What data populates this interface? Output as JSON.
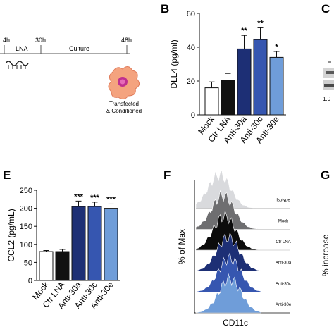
{
  "panels": {
    "B": "B",
    "C": "C",
    "E": "E",
    "F": "F",
    "G": "G"
  },
  "timeline": {
    "t0": "4h",
    "t1": "30h",
    "t2": "48h",
    "stage1": "LNA",
    "stage2": "Culture",
    "cell_caption_line1": "Transfected",
    "cell_caption_line2": "& Conditioned"
  },
  "panel_c_fragment": "1.0",
  "panel_g_fragment": "% increase",
  "chart_data": [
    {
      "panel": "B",
      "type": "bar",
      "categories": [
        "Mock",
        "Ctr LNA",
        "Anti-30a",
        "Anti-30c",
        "Anti-30e"
      ],
      "values": [
        16,
        20.5,
        39,
        44.5,
        34
      ],
      "errors": [
        3.5,
        4,
        8,
        7,
        3.5
      ],
      "significance": [
        "",
        "",
        "**",
        "**",
        "*"
      ],
      "fills": [
        "#ffffff",
        "#111111",
        "#1d2f75",
        "#3656b0",
        "#6f9dd9"
      ],
      "ylabel": "DLL4 (pg/ml)",
      "ylim": [
        0,
        60
      ],
      "yticks": [
        0,
        20,
        40,
        60
      ]
    },
    {
      "panel": "E",
      "type": "bar",
      "categories": [
        "Mock",
        "Ctr LNA",
        "Anti-30a",
        "Anti-30c",
        "Anti-30e"
      ],
      "values": [
        80,
        80,
        205,
        205,
        200
      ],
      "errors": [
        3,
        6,
        15,
        12,
        12
      ],
      "significance": [
        "",
        "",
        "***",
        "***",
        "***"
      ],
      "fills": [
        "#ffffff",
        "#111111",
        "#1d2f75",
        "#3656b0",
        "#6f9dd9"
      ],
      "ylabel": "CCL2 (pg/mL)",
      "ylim": [
        0,
        250
      ],
      "yticks": [
        0,
        50,
        100,
        150,
        200,
        250
      ]
    },
    {
      "panel": "F",
      "type": "area",
      "xlabel": "CD11c",
      "ylabel": "% of Max",
      "series": [
        {
          "name": "Isotype",
          "peak": 0.35,
          "color": "#d9dadd"
        },
        {
          "name": "Mock",
          "peak": 0.42,
          "color": "#6e6e70"
        },
        {
          "name": "Ctr LNA",
          "peak": 0.45,
          "color": "#0c0c0c"
        },
        {
          "name": "Anti-30a",
          "peak": 0.52,
          "color": "#1d2f75"
        },
        {
          "name": "Anti-30c",
          "peak": 0.55,
          "color": "#3656b0"
        },
        {
          "name": "Anti-30e",
          "peak": 0.56,
          "color": "#6f9dd9"
        }
      ]
    }
  ]
}
